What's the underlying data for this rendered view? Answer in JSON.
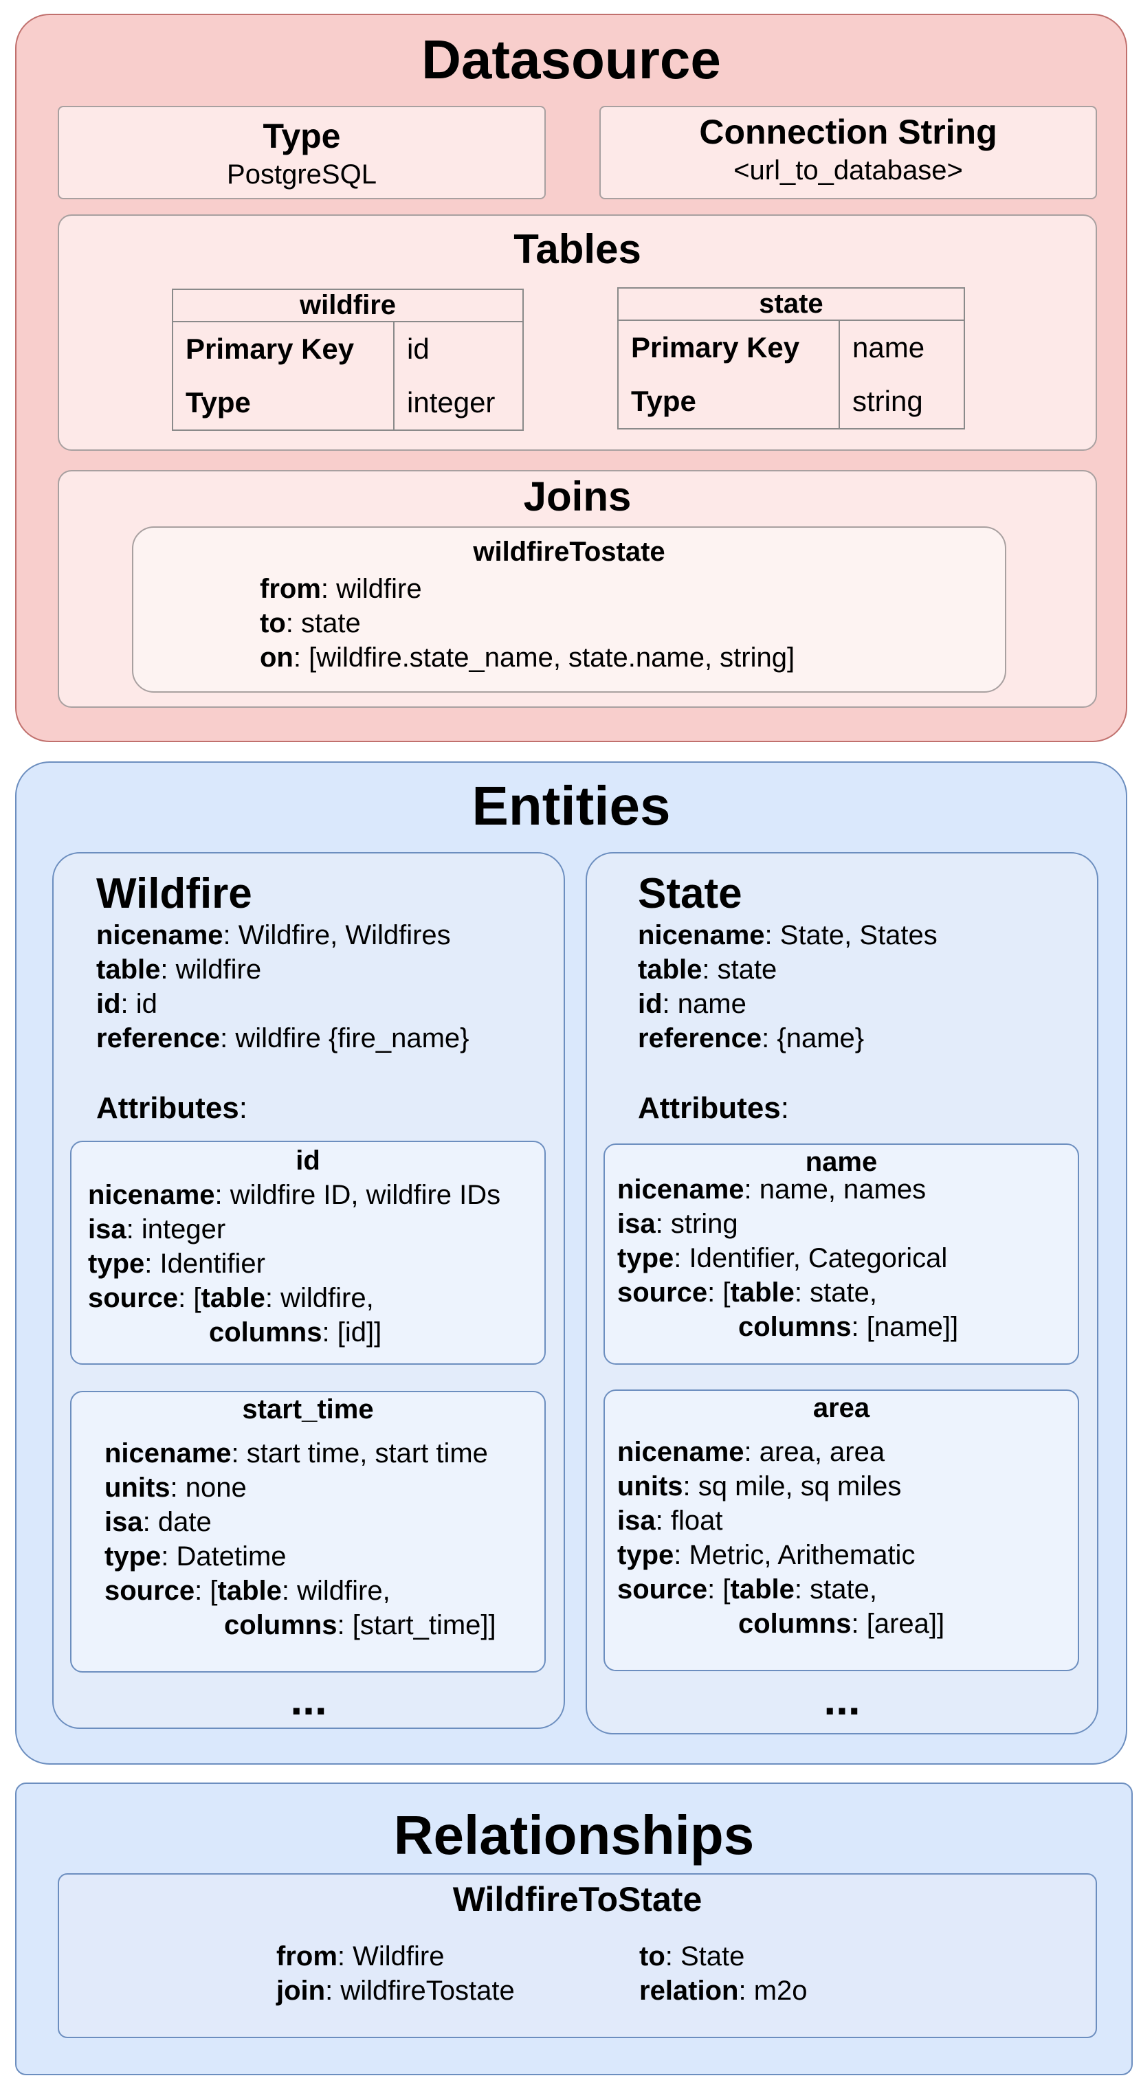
{
  "datasource": {
    "title": "Datasource",
    "type_label": "Type",
    "type_value": "PostgreSQL",
    "conn_label": "Connection String",
    "conn_value": "<url_to_database>",
    "tables_title": "Tables",
    "tables": [
      {
        "name": "wildfire",
        "pk_label": "Primary Key",
        "pk_value": "id",
        "type_label": "Type",
        "type_value": "integer"
      },
      {
        "name": "state",
        "pk_label": "Primary Key",
        "pk_value": "name",
        "type_label": "Type",
        "type_value": "string"
      }
    ],
    "joins_title": "Joins",
    "join": {
      "name": "wildfireTostate",
      "from_key": "from",
      "from_val": ": wildfire",
      "to_key": "to",
      "to_val": ": state",
      "on_key": "on",
      "on_val": ": [wildfire.state_name, state.name, string]"
    }
  },
  "entities": {
    "title": "Entities",
    "ellipsis": "...",
    "list": [
      {
        "name": "Wildfire",
        "props": [
          {
            "k": "nicename",
            "v": ": Wildfire, Wildfires"
          },
          {
            "k": "table",
            "v": ": wildfire"
          },
          {
            "k": "id",
            "v": ": id"
          },
          {
            "k": "reference",
            "v": ": wildfire {fire_name}"
          }
        ],
        "attributes_label": "Attributes",
        "attributes_colon": ":",
        "attributes": [
          {
            "name": "id",
            "lines": [
              {
                "k": "nicename",
                "v": ": wildfire ID, wildfire IDs"
              },
              {
                "k": "isa",
                "v": ": integer"
              },
              {
                "k": "type",
                "v": ": Identifier"
              },
              {
                "k": "source",
                "v": ": [",
                "k2": "table",
                "v2": ": wildfire,"
              },
              {
                "k": "columns",
                "v": ": [id]]"
              }
            ]
          },
          {
            "name": "start_time",
            "lines": [
              {
                "k": "nicename",
                "v": ": start time, start time"
              },
              {
                "k": "units",
                "v": ": none"
              },
              {
                "k": "isa",
                "v": ": date"
              },
              {
                "k": "type",
                "v": ": Datetime"
              },
              {
                "k": "source",
                "v": ": [",
                "k2": "table",
                "v2": ": wildfire,"
              },
              {
                "k": "columns",
                "v": ": [start_time]]"
              }
            ]
          }
        ]
      },
      {
        "name": "State",
        "props": [
          {
            "k": "nicename",
            "v": ": State, States"
          },
          {
            "k": "table",
            "v": ": state"
          },
          {
            "k": "id",
            "v": ": name"
          },
          {
            "k": "reference",
            "v": ": {name}"
          }
        ],
        "attributes_label": "Attributes",
        "attributes_colon": ":",
        "attributes": [
          {
            "name": "name",
            "lines": [
              {
                "k": "nicename",
                "v": ": name, names"
              },
              {
                "k": "isa",
                "v": ": string"
              },
              {
                "k": "type",
                "v": ": Identifier, Categorical"
              },
              {
                "k": "source",
                "v": ": [",
                "k2": "table",
                "v2": ": state,"
              },
              {
                "k": "columns",
                "v": ": [name]]"
              }
            ]
          },
          {
            "name": "area",
            "lines": [
              {
                "k": "nicename",
                "v": ": area, area"
              },
              {
                "k": "units",
                "v": ": sq mile, sq miles"
              },
              {
                "k": "isa",
                "v": ": float"
              },
              {
                "k": "type",
                "v": ": Metric, Arithematic"
              },
              {
                "k": "source",
                "v": ": [",
                "k2": "table",
                "v2": ": state,"
              },
              {
                "k": "columns",
                "v": ": [area]]"
              }
            ]
          }
        ]
      }
    ]
  },
  "relationships": {
    "title": "Relationships",
    "name": "WildfireToState",
    "from_key": "from",
    "from_val": ": Wildfire",
    "join_key": "join",
    "join_val": ": wildfireTostate",
    "to_key": "to",
    "to_val": ": State",
    "rel_key": "relation",
    "rel_val": ": m2o"
  },
  "colors": {
    "datasource_bg": "#f8cecc",
    "entities_bg": "#dae8fc",
    "relationships_bg": "#dae8fc"
  }
}
